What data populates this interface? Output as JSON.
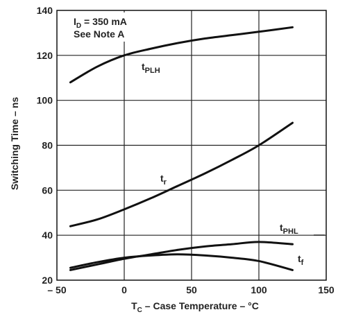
{
  "chart_data": {
    "type": "line",
    "xlabel": "T",
    "xlabel_sub": "C",
    "xlabel_rest": " – Case Temperature – °C",
    "ylabel": "Switching Time – ns",
    "xlim": [
      -50,
      150
    ],
    "ylim": [
      20,
      140
    ],
    "xticks": [
      -50,
      0,
      50,
      100,
      150
    ],
    "xtick_labels": [
      "– 50",
      "0",
      "50",
      "100",
      "150"
    ],
    "yticks": [
      20,
      40,
      60,
      80,
      100,
      120,
      140
    ],
    "ytick_labels": [
      "20",
      "40",
      "60",
      "80",
      "100",
      "120",
      "140"
    ],
    "grid": true,
    "annotations": {
      "line1_main": "I",
      "line1_sub": "D",
      "line1_rest": " = 350 mA",
      "line2": "See Note A"
    },
    "series": [
      {
        "name_main": "t",
        "name_sub": "PLH",
        "x": [
          -40,
          -20,
          0,
          20,
          40,
          60,
          80,
          100,
          125
        ],
        "y": [
          108,
          115,
          120,
          123,
          125.5,
          127.5,
          129,
          130.5,
          132.5
        ]
      },
      {
        "name_main": "t",
        "name_sub": "r",
        "x": [
          -40,
          -20,
          0,
          20,
          40,
          60,
          80,
          100,
          125
        ],
        "y": [
          44,
          47,
          51.5,
          56.5,
          62,
          67.5,
          73.5,
          80,
          90
        ]
      },
      {
        "name_main": "t",
        "name_sub": "PHL",
        "x": [
          -40,
          -20,
          0,
          20,
          40,
          60,
          80,
          100,
          125
        ],
        "y": [
          24.5,
          27,
          29.5,
          31.5,
          33.5,
          35,
          36,
          37,
          36
        ]
      },
      {
        "name_main": "t",
        "name_sub": "f",
        "x": [
          -40,
          -20,
          0,
          20,
          40,
          60,
          80,
          100,
          125
        ],
        "y": [
          25.5,
          28,
          30,
          31,
          31.5,
          31,
          30,
          28.5,
          24.5
        ]
      }
    ]
  }
}
